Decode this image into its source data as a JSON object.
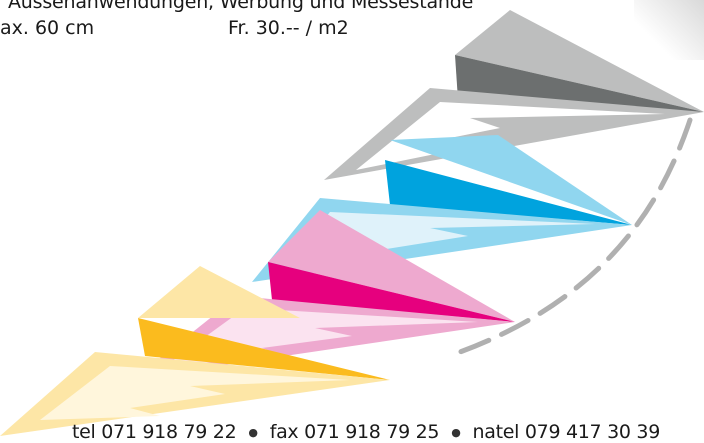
{
  "header": {
    "line1": "Aussenanwendungen, Werbung und Messestände",
    "size": "ax. 60 cm",
    "price": "Fr. 30.-- / m2"
  },
  "contact": {
    "tel": "tel 071 918 79 22",
    "fax": "fax 071 918 79 25",
    "natel": "natel 079 417 30 39"
  },
  "artwork": {
    "planes": [
      {
        "name": "gray-plane",
        "colors": {
          "dark": "#6c6f6f",
          "mid": "#bdbebe",
          "light": "#ffffff"
        }
      },
      {
        "name": "cyan-plane",
        "colors": {
          "dark": "#00a3de",
          "mid": "#90d6ef",
          "light": "#dff2fa"
        }
      },
      {
        "name": "magenta-plane",
        "colors": {
          "dark": "#e6007e",
          "mid": "#eea9cf",
          "light": "#fbe3f0"
        }
      },
      {
        "name": "yellow-plane",
        "colors": {
          "dark": "#fbbb1e",
          "mid": "#fde6a6",
          "light": "#fff6dc"
        }
      }
    ],
    "trail_color": "#b0b0b0"
  }
}
